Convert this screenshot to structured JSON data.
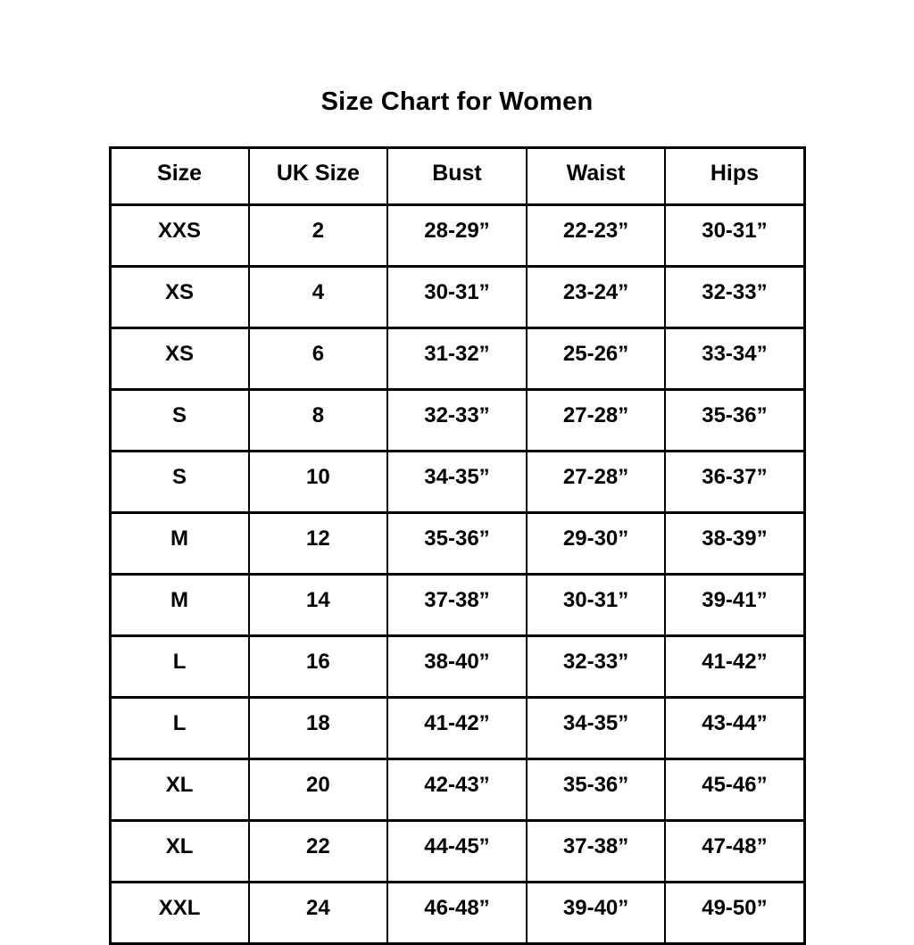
{
  "chart_data": {
    "type": "table",
    "title": "Size Chart for Women",
    "columns": [
      "Size",
      "UK Size",
      "Bust",
      "Waist",
      "Hips"
    ],
    "rows": [
      [
        "XXS",
        "2",
        "28-29”",
        "22-23”",
        "30-31”"
      ],
      [
        "XS",
        "4",
        "30-31”",
        "23-24”",
        "32-33”"
      ],
      [
        "XS",
        "6",
        "31-32”",
        "25-26”",
        "33-34”"
      ],
      [
        "S",
        "8",
        "32-33”",
        "27-28”",
        "35-36”"
      ],
      [
        "S",
        "10",
        "34-35”",
        "27-28”",
        "36-37”"
      ],
      [
        "M",
        "12",
        "35-36”",
        "29-30”",
        "38-39”"
      ],
      [
        "M",
        "14",
        "37-38”",
        "30-31”",
        "39-41”"
      ],
      [
        "L",
        "16",
        "38-40”",
        "32-33”",
        "41-42”"
      ],
      [
        "L",
        "18",
        "41-42”",
        "34-35”",
        "43-44”"
      ],
      [
        "XL",
        "20",
        "42-43”",
        "35-36”",
        "45-46”"
      ],
      [
        "XL",
        "22",
        "44-45”",
        "37-38”",
        "47-48”"
      ],
      [
        "XXL",
        "24",
        "46-48”",
        "39-40”",
        "49-50”"
      ]
    ],
    "layout": {
      "legend": "none",
      "grid": "full-borders",
      "column_count": 5,
      "row_count": 12
    }
  },
  "colors": {
    "background": "#ffffff",
    "text": "#000000",
    "border": "#000000"
  }
}
